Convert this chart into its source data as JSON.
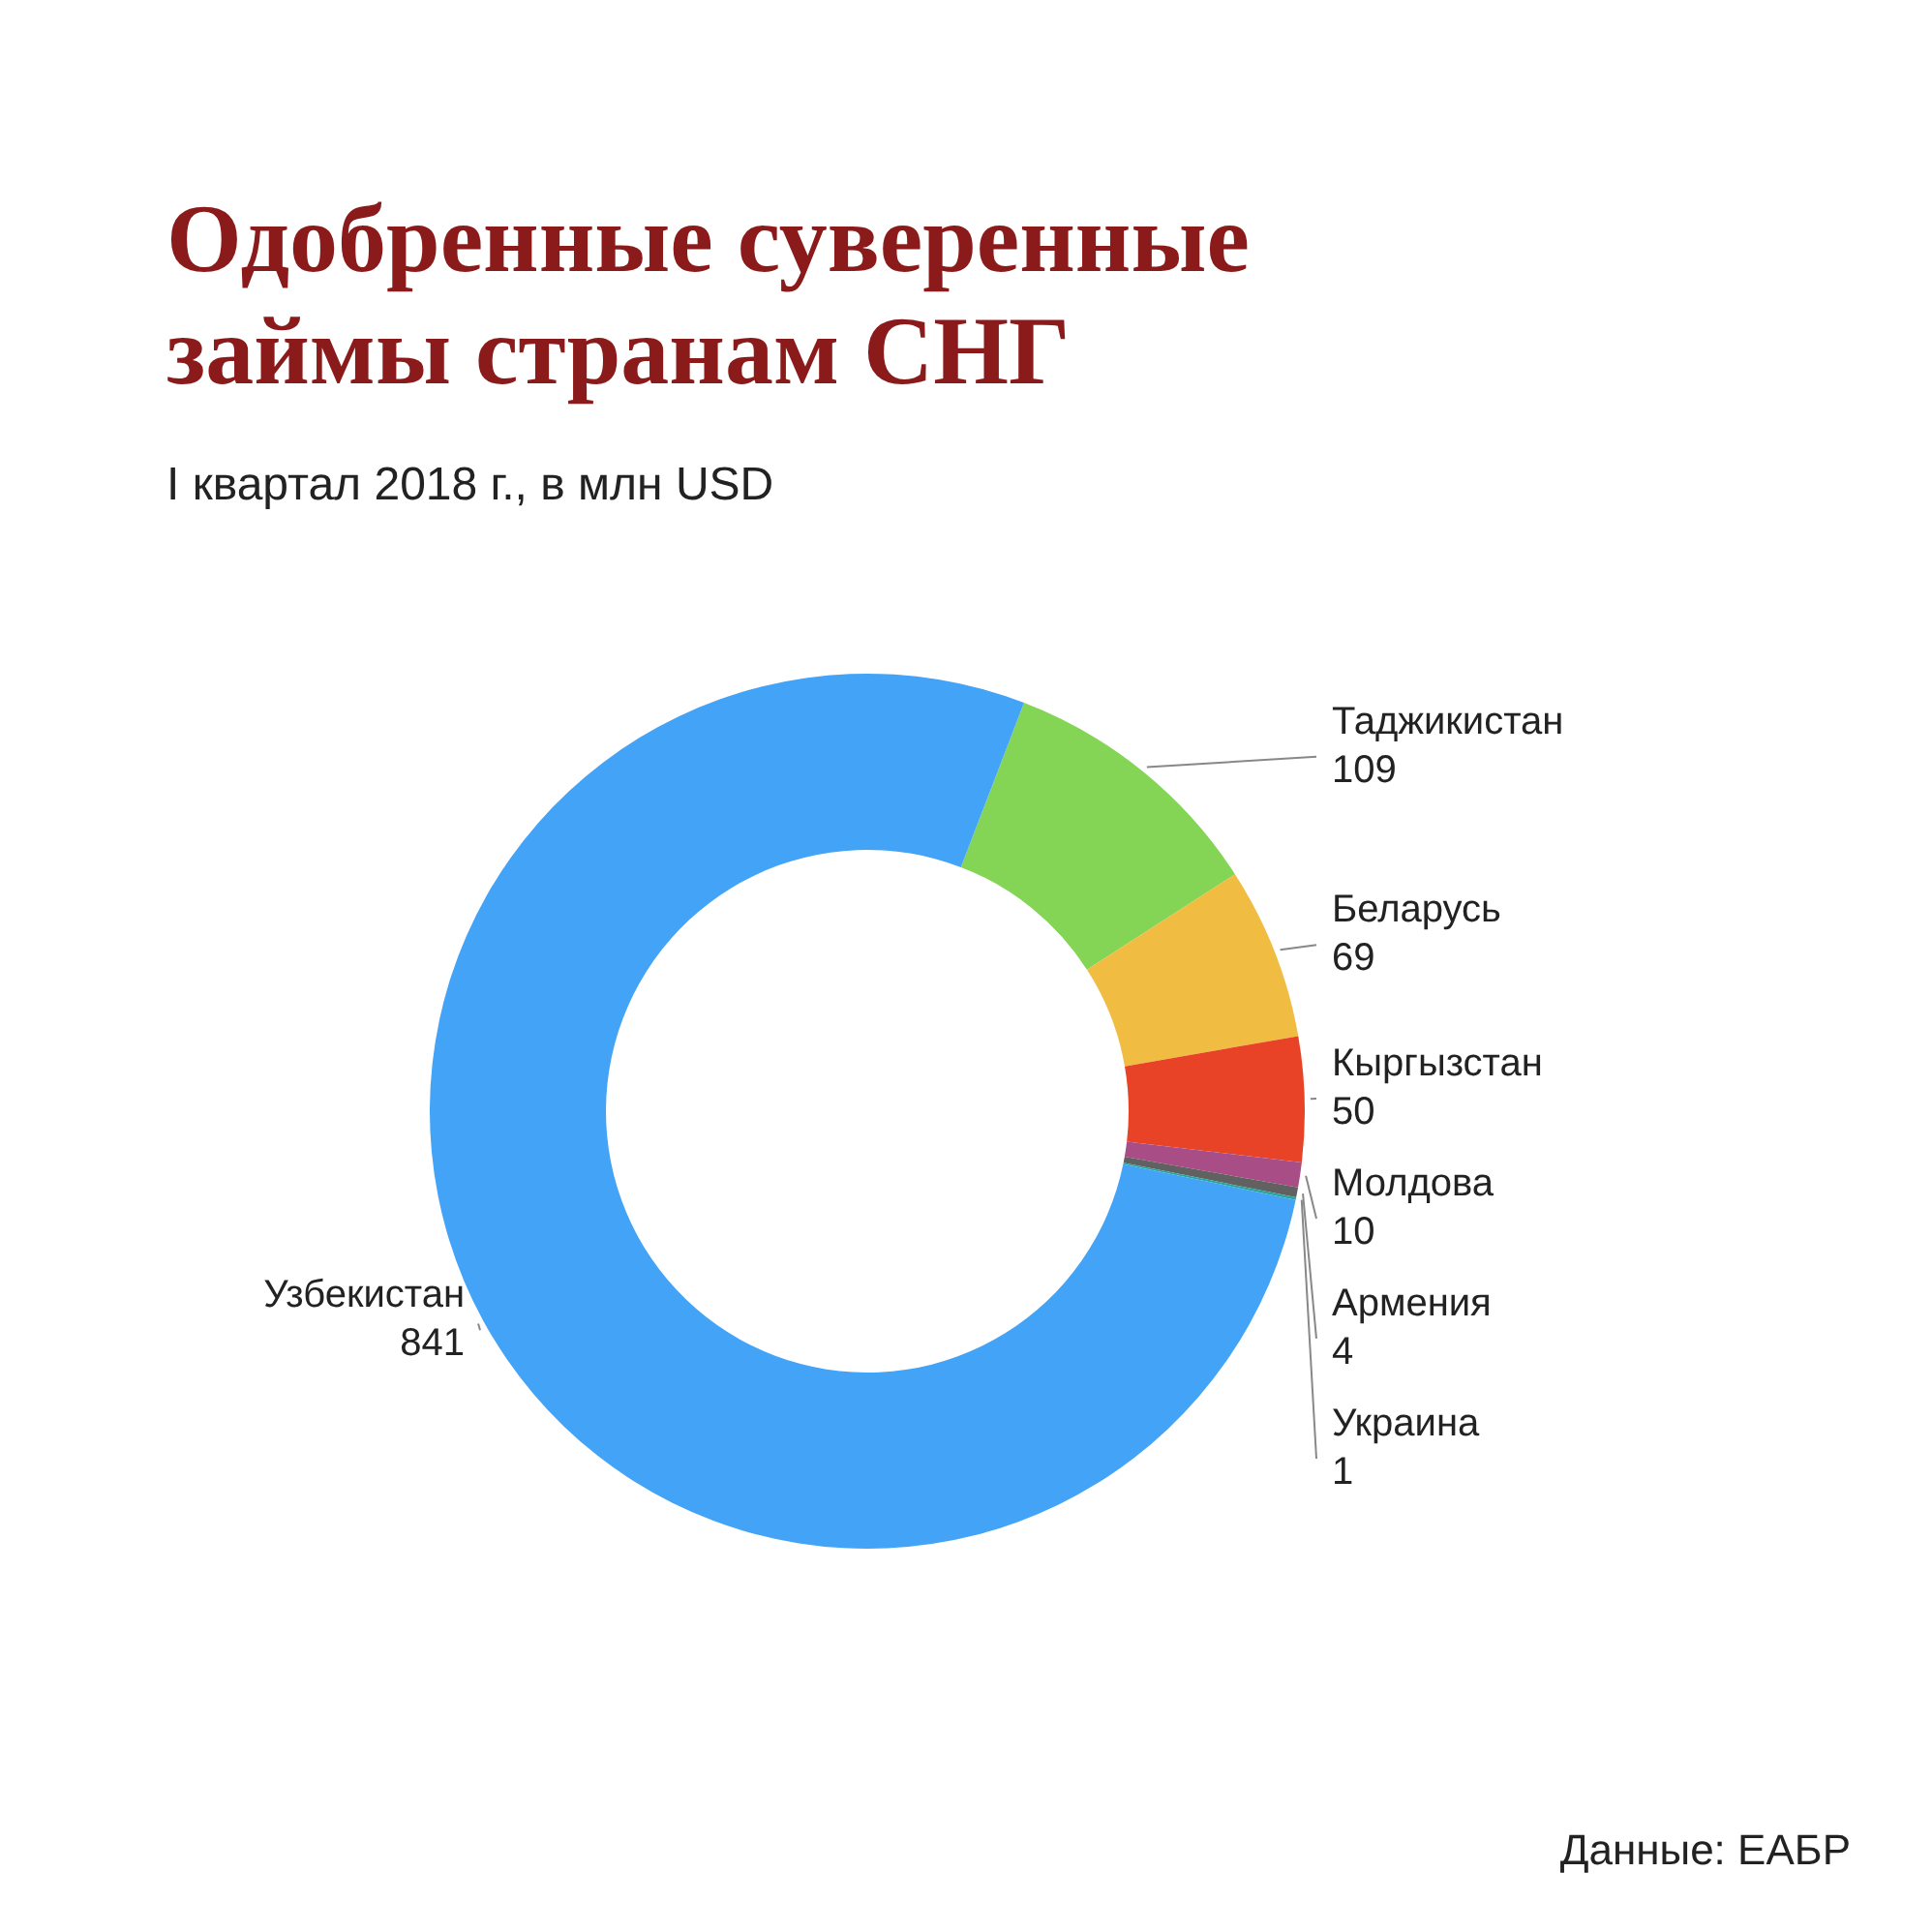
{
  "chart_data": {
    "type": "donut",
    "title": "Одобренные суверенные займы странам СНГ",
    "subtitle": "I квартал 2018 г., в млн USD",
    "categories": [
      "Таджикистан",
      "Беларусь",
      "Кыргызстан",
      "Молдова",
      "Армения",
      "Украина",
      "Узбекистан"
    ],
    "values": [
      109,
      69,
      50,
      10,
      4,
      1,
      841
    ],
    "colors": [
      "#84d455",
      "#f0bc42",
      "#e94327",
      "#a94d87",
      "#616161",
      "#26a69a",
      "#43a3f7"
    ],
    "data_labels": true,
    "annotations": [
      "Данные: ЕАБР"
    ]
  }
}
